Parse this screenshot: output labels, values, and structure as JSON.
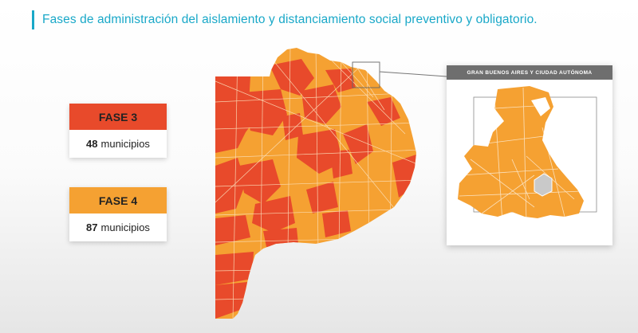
{
  "header": {
    "title": "Fases de administración del aislamiento y distanciamiento social preventivo y obligatorio."
  },
  "legend": [
    {
      "phase": "FASE 3",
      "count": "48",
      "unit": "municipios",
      "color": "#e84a2b"
    },
    {
      "phase": "FASE 4",
      "count": "87",
      "unit": "municipios",
      "color": "#f5a132"
    }
  ],
  "inset": {
    "title": "GRAN BUENOS AIRES Y CIUDAD AUTÓNOMA"
  },
  "colors": {
    "accent": "#19a8c8",
    "fase3": "#e84a2b",
    "fase4": "#f5a132",
    "caba": "#c9c9c9"
  }
}
